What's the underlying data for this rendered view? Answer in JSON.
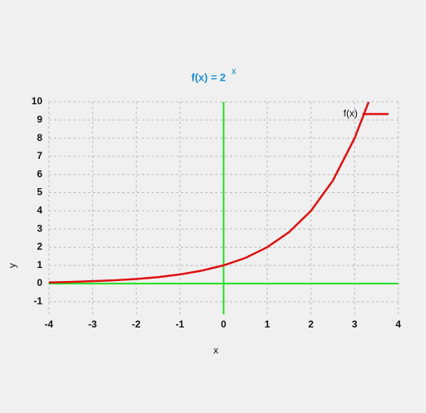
{
  "chart_data": {
    "type": "line",
    "title": "f(x) = 2",
    "title_exponent": "x",
    "x_label": "x",
    "y_label": "y",
    "x": [
      -4,
      -3.5,
      -3,
      -2.5,
      -2,
      -1.5,
      -1,
      -0.5,
      0,
      0.5,
      1,
      1.5,
      2,
      2.5,
      3,
      3.32
    ],
    "series": [
      {
        "name": "f(x)",
        "color": "#e01010",
        "values": [
          0.06,
          0.09,
          0.13,
          0.18,
          0.25,
          0.35,
          0.5,
          0.71,
          1,
          1.41,
          2,
          2.83,
          4,
          5.66,
          8,
          9.99
        ]
      }
    ],
    "xlim": [
      -4,
      4
    ],
    "ylim": [
      -1.7,
      10
    ],
    "xticks": [
      -4,
      -3,
      -2,
      -1,
      0,
      1,
      2,
      3,
      4
    ],
    "yticks": [
      -1,
      0,
      1,
      2,
      3,
      4,
      5,
      6,
      7,
      8,
      9,
      10
    ],
    "grid": true,
    "axis_color": "#22dd22",
    "legend": "upper right"
  }
}
